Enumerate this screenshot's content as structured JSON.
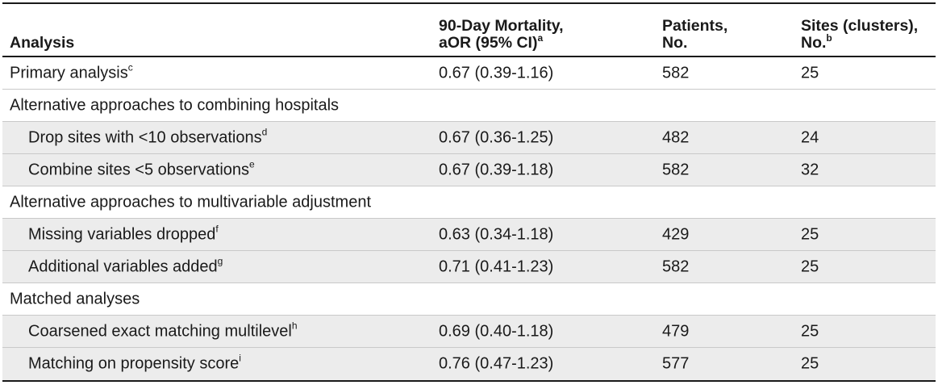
{
  "header": {
    "analysis": "Analysis",
    "mortality_line1": "90-Day Mortality,",
    "mortality_line2": "aOR (95% CI)",
    "mortality_sup": "a",
    "patients_line1": "Patients,",
    "patients_line2": "No.",
    "sites_line1": "Sites (clusters),",
    "sites_line2": "No.",
    "sites_sup": "b"
  },
  "rows": [
    {
      "kind": "primary",
      "label": "Primary analysis",
      "sup": "c",
      "aor": "0.67 (0.39-1.16)",
      "patients": "582",
      "sites": "25"
    },
    {
      "kind": "section",
      "label": "Alternative approaches to combining hospitals"
    },
    {
      "kind": "sub",
      "label": "Drop sites with <10 observations",
      "sup": "d",
      "aor": "0.67 (0.36-1.25)",
      "patients": "482",
      "sites": "24"
    },
    {
      "kind": "sub",
      "label": "Combine sites <5 observations",
      "sup": "e",
      "aor": "0.67 (0.39-1.18)",
      "patients": "582",
      "sites": "32"
    },
    {
      "kind": "section",
      "label": "Alternative approaches to multivariable adjustment"
    },
    {
      "kind": "sub",
      "label": "Missing variables dropped",
      "sup": "f",
      "aor": "0.63 (0.34-1.18)",
      "patients": "429",
      "sites": "25"
    },
    {
      "kind": "sub",
      "label": "Additional variables added",
      "sup": "g",
      "aor": "0.71 (0.41-1.23)",
      "patients": "582",
      "sites": "25"
    },
    {
      "kind": "section",
      "label": "Matched analyses"
    },
    {
      "kind": "sub",
      "label": "Coarsened exact matching multilevel",
      "sup": "h",
      "aor": "0.69 (0.40-1.18)",
      "patients": "479",
      "sites": "25"
    },
    {
      "kind": "sub",
      "label": "Matching on propensity score",
      "sup": "i",
      "aor": "0.76 (0.47-1.23)",
      "patients": "577",
      "sites": "25"
    }
  ]
}
